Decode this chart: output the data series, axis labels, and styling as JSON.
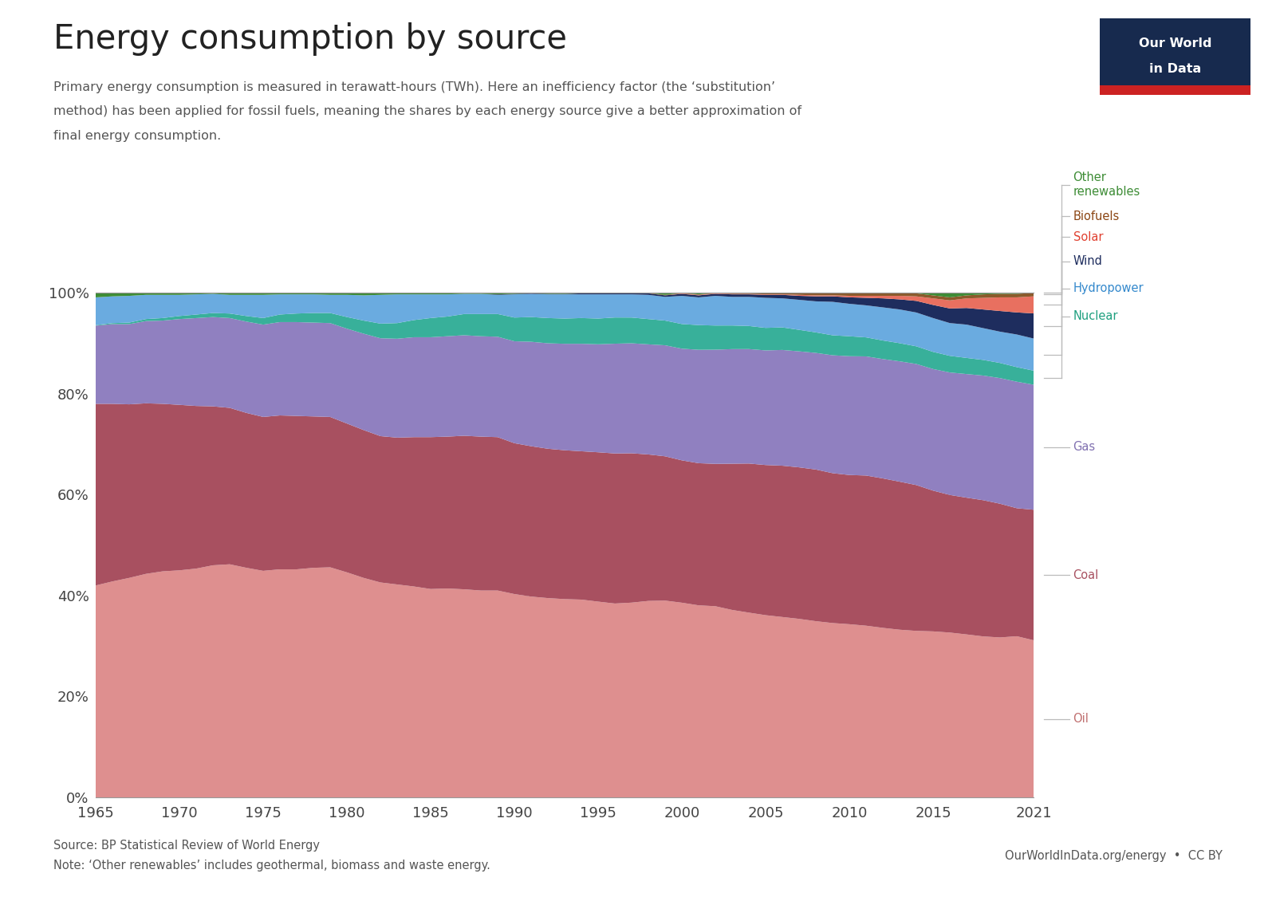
{
  "title": "Energy consumption by source",
  "subtitle_line1": "Primary energy consumption is measured in terawatt-hours (TWh). Here an inefficiency factor (the ‘substitution’",
  "subtitle_line2": "method) has been applied for fossil fuels, meaning the shares by each energy source give a better approximation of",
  "subtitle_line3": "final energy consumption.",
  "source_text": "Source: BP Statistical Review of World Energy",
  "note_text": "Note: ‘Other renewables’ includes geothermal, biomass and waste energy.",
  "owid_text": "OurWorldInData.org/energy  •  CC BY",
  "years": [
    1965,
    1966,
    1967,
    1968,
    1969,
    1970,
    1971,
    1972,
    1973,
    1974,
    1975,
    1976,
    1977,
    1978,
    1979,
    1980,
    1981,
    1982,
    1983,
    1984,
    1985,
    1986,
    1987,
    1988,
    1989,
    1990,
    1991,
    1992,
    1993,
    1994,
    1995,
    1996,
    1997,
    1998,
    1999,
    2000,
    2001,
    2002,
    2003,
    2004,
    2005,
    2006,
    2007,
    2008,
    2009,
    2010,
    2011,
    2012,
    2013,
    2014,
    2015,
    2016,
    2017,
    2018,
    2019,
    2020,
    2021
  ],
  "series": {
    "Oil": [
      0.42,
      0.428,
      0.435,
      0.443,
      0.448,
      0.45,
      0.453,
      0.46,
      0.462,
      0.455,
      0.449,
      0.452,
      0.452,
      0.455,
      0.456,
      0.446,
      0.435,
      0.426,
      0.422,
      0.418,
      0.413,
      0.414,
      0.412,
      0.41,
      0.41,
      0.403,
      0.398,
      0.395,
      0.393,
      0.392,
      0.388,
      0.385,
      0.386,
      0.389,
      0.39,
      0.387,
      0.381,
      0.38,
      0.373,
      0.368,
      0.364,
      0.36,
      0.357,
      0.352,
      0.349,
      0.347,
      0.343,
      0.338,
      0.333,
      0.33,
      0.329,
      0.327,
      0.323,
      0.319,
      0.317,
      0.321,
      0.313
    ],
    "Coal": [
      0.36,
      0.352,
      0.344,
      0.338,
      0.332,
      0.328,
      0.322,
      0.315,
      0.31,
      0.307,
      0.305,
      0.305,
      0.304,
      0.3,
      0.298,
      0.295,
      0.293,
      0.29,
      0.291,
      0.296,
      0.301,
      0.301,
      0.304,
      0.305,
      0.304,
      0.299,
      0.298,
      0.296,
      0.295,
      0.294,
      0.296,
      0.298,
      0.296,
      0.29,
      0.286,
      0.283,
      0.282,
      0.283,
      0.291,
      0.297,
      0.3,
      0.302,
      0.303,
      0.303,
      0.3,
      0.299,
      0.3,
      0.298,
      0.294,
      0.289,
      0.279,
      0.273,
      0.271,
      0.27,
      0.265,
      0.255,
      0.26
    ],
    "Gas": [
      0.155,
      0.158,
      0.159,
      0.163,
      0.165,
      0.17,
      0.174,
      0.177,
      0.178,
      0.181,
      0.183,
      0.185,
      0.186,
      0.186,
      0.186,
      0.188,
      0.191,
      0.194,
      0.196,
      0.198,
      0.198,
      0.199,
      0.199,
      0.199,
      0.199,
      0.202,
      0.207,
      0.209,
      0.211,
      0.213,
      0.214,
      0.218,
      0.218,
      0.218,
      0.22,
      0.222,
      0.225,
      0.227,
      0.228,
      0.228,
      0.229,
      0.231,
      0.232,
      0.233,
      0.236,
      0.238,
      0.238,
      0.238,
      0.239,
      0.24,
      0.241,
      0.243,
      0.245,
      0.247,
      0.249,
      0.252,
      0.249
    ],
    "Nuclear": [
      0.001,
      0.002,
      0.003,
      0.004,
      0.005,
      0.006,
      0.007,
      0.008,
      0.009,
      0.011,
      0.013,
      0.015,
      0.017,
      0.019,
      0.02,
      0.023,
      0.026,
      0.029,
      0.031,
      0.034,
      0.038,
      0.039,
      0.042,
      0.044,
      0.045,
      0.047,
      0.049,
      0.05,
      0.05,
      0.051,
      0.051,
      0.052,
      0.051,
      0.05,
      0.049,
      0.049,
      0.049,
      0.048,
      0.047,
      0.046,
      0.045,
      0.045,
      0.043,
      0.041,
      0.04,
      0.04,
      0.038,
      0.037,
      0.036,
      0.035,
      0.034,
      0.033,
      0.032,
      0.031,
      0.03,
      0.029,
      0.028
    ],
    "Hydropower": [
      0.055,
      0.053,
      0.053,
      0.048,
      0.046,
      0.042,
      0.04,
      0.038,
      0.037,
      0.042,
      0.046,
      0.04,
      0.038,
      0.037,
      0.036,
      0.044,
      0.05,
      0.057,
      0.057,
      0.051,
      0.047,
      0.044,
      0.04,
      0.04,
      0.038,
      0.046,
      0.046,
      0.047,
      0.048,
      0.047,
      0.048,
      0.046,
      0.046,
      0.048,
      0.047,
      0.056,
      0.055,
      0.059,
      0.057,
      0.058,
      0.06,
      0.058,
      0.06,
      0.062,
      0.067,
      0.065,
      0.064,
      0.066,
      0.067,
      0.067,
      0.067,
      0.065,
      0.066,
      0.063,
      0.062,
      0.065,
      0.064
    ],
    "Wind": [
      0.0,
      0.0,
      0.0,
      0.0,
      0.0,
      0.0,
      0.0,
      0.0,
      0.0,
      0.0,
      0.0,
      0.0,
      0.0,
      0.0,
      0.0,
      0.0,
      0.0,
      0.0,
      0.0,
      0.0,
      0.0,
      0.0,
      0.0,
      0.0,
      0.001,
      0.001,
      0.001,
      0.001,
      0.001,
      0.002,
      0.002,
      0.002,
      0.002,
      0.003,
      0.003,
      0.004,
      0.004,
      0.004,
      0.005,
      0.005,
      0.006,
      0.007,
      0.008,
      0.01,
      0.011,
      0.013,
      0.015,
      0.018,
      0.02,
      0.023,
      0.026,
      0.029,
      0.033,
      0.037,
      0.041,
      0.044,
      0.05
    ],
    "Solar": [
      0.0,
      0.0,
      0.0,
      0.0,
      0.0,
      0.0,
      0.0,
      0.0,
      0.0,
      0.0,
      0.0,
      0.0,
      0.0,
      0.0,
      0.0,
      0.0,
      0.0,
      0.0,
      0.0,
      0.0,
      0.0,
      0.0,
      0.0,
      0.0,
      0.0,
      0.0,
      0.0,
      0.0,
      0.0,
      0.0,
      0.0,
      0.0,
      0.0,
      0.0,
      0.0,
      0.001,
      0.001,
      0.001,
      0.001,
      0.001,
      0.001,
      0.001,
      0.002,
      0.002,
      0.002,
      0.003,
      0.004,
      0.005,
      0.007,
      0.009,
      0.013,
      0.016,
      0.019,
      0.023,
      0.027,
      0.03,
      0.034
    ],
    "Biofuels": [
      0.0,
      0.0,
      0.0,
      0.0,
      0.0,
      0.0,
      0.0,
      0.0,
      0.0,
      0.0,
      0.0,
      0.0,
      0.0,
      0.0,
      0.0,
      0.0,
      0.0,
      0.0,
      0.0,
      0.0,
      0.0,
      0.0,
      0.0,
      0.0,
      0.0,
      0.0,
      0.0,
      0.0,
      0.0,
      0.0,
      0.001,
      0.001,
      0.001,
      0.001,
      0.001,
      0.001,
      0.001,
      0.001,
      0.002,
      0.002,
      0.003,
      0.003,
      0.004,
      0.004,
      0.004,
      0.005,
      0.005,
      0.005,
      0.005,
      0.006,
      0.006,
      0.006,
      0.006,
      0.007,
      0.007,
      0.007,
      0.007
    ],
    "Other renewables": [
      0.009,
      0.007,
      0.006,
      0.004,
      0.004,
      0.004,
      0.003,
      0.002,
      0.004,
      0.004,
      0.004,
      0.003,
      0.003,
      0.003,
      0.004,
      0.004,
      0.005,
      0.004,
      0.003,
      0.003,
      0.003,
      0.003,
      0.002,
      0.002,
      0.003,
      0.002,
      0.001,
      0.002,
      0.002,
      0.001,
      0.0,
      0.0,
      0.0,
      0.0,
      0.004,
      0.0,
      0.003,
      0.0,
      0.0,
      0.0,
      0.0,
      0.0,
      0.0,
      0.001,
      0.001,
      0.001,
      0.001,
      0.001,
      0.001,
      0.001,
      0.005,
      0.009,
      0.005,
      0.003,
      0.002,
      0.002,
      0.0
    ]
  },
  "colors": {
    "Oil": "#de8f8f",
    "Coal": "#a85060",
    "Gas": "#9080c0",
    "Nuclear": "#38b09a",
    "Hydropower": "#6aabe0",
    "Wind": "#1e2d5e",
    "Solar": "#e87060",
    "Biofuels": "#8b5a2b",
    "Other renewables": "#3d8c35"
  },
  "legend_text_colors": {
    "Other renewables": "#3d8c35",
    "Biofuels": "#8b4513",
    "Solar": "#e04030",
    "Wind": "#1e2d5e",
    "Hydropower": "#3388cc",
    "Nuclear": "#20a080",
    "Gas": "#8070b0",
    "Coal": "#a85060",
    "Oil": "#c07070"
  },
  "background_color": "#ffffff",
  "owid_box_color": "#172a4e",
  "owid_red_stripe": "#cc2222",
  "grid_color": "#c8c8c8",
  "xlim": [
    1965,
    2021
  ],
  "ylim": [
    0.0,
    1.0
  ]
}
